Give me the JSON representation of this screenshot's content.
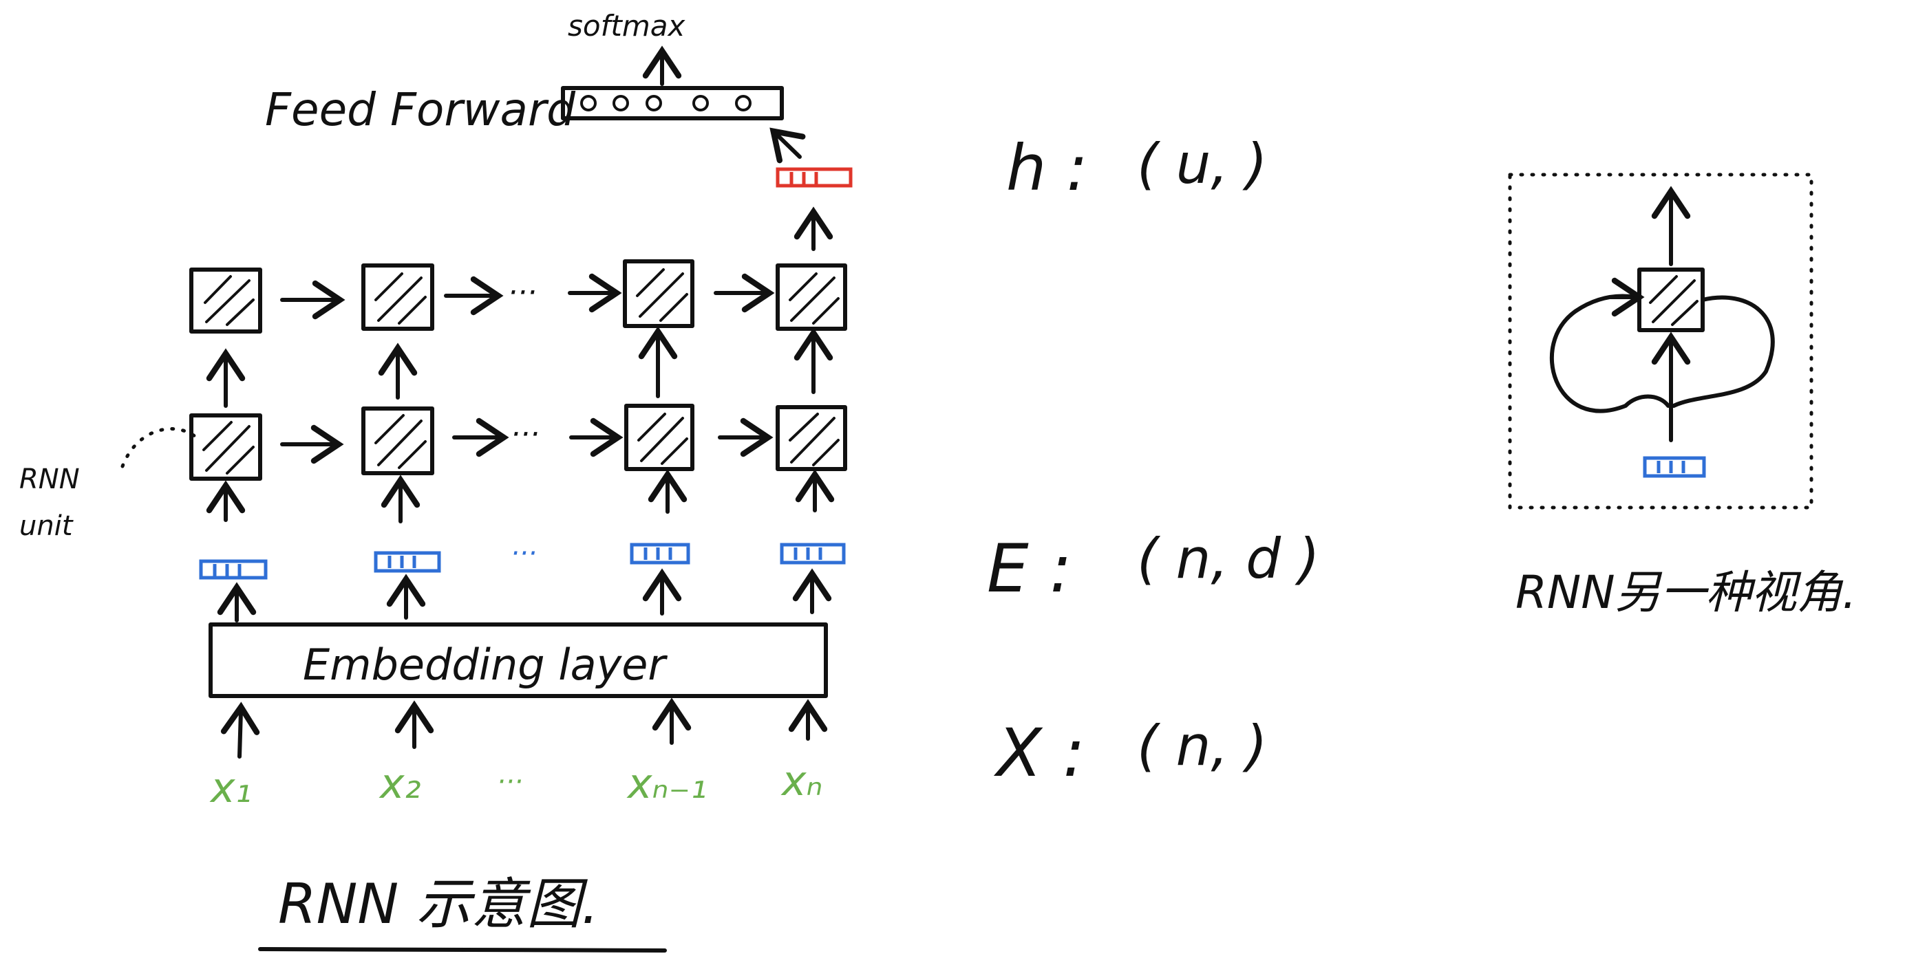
{
  "labels": {
    "softmax": "softmax",
    "feed_forward": "Feed Forward",
    "rnn_unit_line1": "RNN",
    "rnn_unit_line2": "unit",
    "embedding_layer": "Embedding layer",
    "ellipsis_cells": "···",
    "ellipsis_embed": "···",
    "ellipsis_inputs": "···",
    "title_main": "RNN 示意图.",
    "title_alt": "RNN另一种视角."
  },
  "inputs": {
    "x1": "x₁",
    "x2": "x₂",
    "xn_1": "xₙ₋₁",
    "xn": "xₙ"
  },
  "shapes": {
    "h": {
      "symbol": "h :",
      "shape": "( u, )"
    },
    "E": {
      "symbol": "E :",
      "shape": "( n, d )"
    },
    "X": {
      "symbol": "X :",
      "shape": "( n, )"
    }
  },
  "colors": {
    "ink": "#111111",
    "embedding_vector": "#2f6fd6",
    "hidden_output": "#e0362b",
    "input_token": "#6ab04c"
  }
}
